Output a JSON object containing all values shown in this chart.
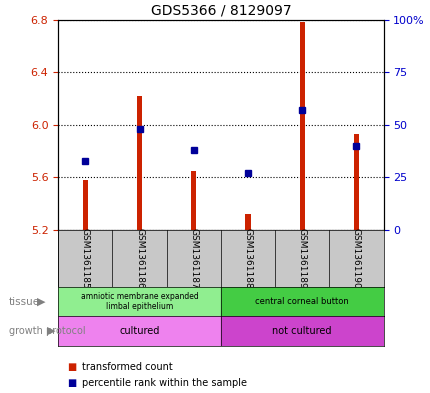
{
  "title": "GDS5366 / 8129097",
  "samples": [
    "GSM1361185",
    "GSM1361186",
    "GSM1361187",
    "GSM1361188",
    "GSM1361189",
    "GSM1361190"
  ],
  "red_values": [
    5.58,
    6.22,
    5.65,
    5.32,
    6.78,
    5.93
  ],
  "blue_percentiles": [
    33,
    48,
    38,
    27,
    57,
    40
  ],
  "ylim_left": [
    5.2,
    6.8
  ],
  "ylim_right": [
    0,
    100
  ],
  "yticks_left": [
    5.2,
    5.6,
    6.0,
    6.4,
    6.8
  ],
  "yticks_right": [
    0,
    25,
    50,
    75,
    100
  ],
  "ytick_labels_right": [
    "0",
    "25",
    "50",
    "75",
    "100%"
  ],
  "tissue_group1_label": "amniotic membrane expanded\nlimbal epithelium",
  "tissue_group1_color": "#90EE90",
  "tissue_group2_label": "central corneal button",
  "tissue_group2_color": "#44CC44",
  "protocol_group1_label": "cultured",
  "protocol_group1_color": "#EE82EE",
  "protocol_group2_label": "not cultured",
  "protocol_group2_color": "#CC44CC",
  "bar_color": "#CC2200",
  "dot_color": "#000099",
  "sample_bg_color": "#C8C8C8",
  "plot_bg": "#FFFFFF",
  "grid_color": "#000000",
  "left_tick_color": "#CC2200",
  "right_tick_color": "#0000CC",
  "label_color": "#808080",
  "bar_width": 0.1
}
